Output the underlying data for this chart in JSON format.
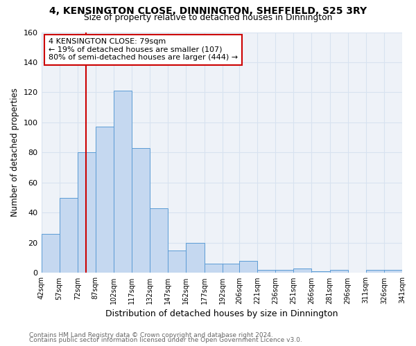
{
  "title": "4, KENSINGTON CLOSE, DINNINGTON, SHEFFIELD, S25 3RY",
  "subtitle": "Size of property relative to detached houses in Dinnington",
  "xlabel": "Distribution of detached houses by size in Dinnington",
  "ylabel": "Number of detached properties",
  "bin_edges": [
    42,
    57,
    72,
    87,
    102,
    117,
    132,
    147,
    162,
    177,
    192,
    206,
    221,
    236,
    251,
    266,
    281,
    296,
    311,
    326,
    341
  ],
  "bar_heights": [
    26,
    50,
    80,
    97,
    121,
    83,
    43,
    15,
    20,
    6,
    6,
    8,
    2,
    2,
    3,
    1,
    2,
    0,
    2,
    2
  ],
  "bar_color": "#c5d8f0",
  "bar_edge_color": "#5b9bd5",
  "vline_x": 79,
  "vline_color": "#cc0000",
  "ylim": [
    0,
    160
  ],
  "yticks": [
    0,
    20,
    40,
    60,
    80,
    100,
    120,
    140,
    160
  ],
  "annotation_title": "4 KENSINGTON CLOSE: 79sqm",
  "annotation_line1": "← 19% of detached houses are smaller (107)",
  "annotation_line2": "80% of semi-detached houses are larger (444) →",
  "annotation_box_color": "#cc0000",
  "footer_line1": "Contains HM Land Registry data © Crown copyright and database right 2024.",
  "footer_line2": "Contains public sector information licensed under the Open Government Licence v3.0.",
  "bg_color": "#eef2f8",
  "grid_color": "#d8e2f0",
  "tick_labels": [
    "42sqm",
    "57sqm",
    "72sqm",
    "87sqm",
    "102sqm",
    "117sqm",
    "132sqm",
    "147sqm",
    "162sqm",
    "177sqm",
    "192sqm",
    "206sqm",
    "221sqm",
    "236sqm",
    "251sqm",
    "266sqm",
    "281sqm",
    "296sqm",
    "311sqm",
    "326sqm",
    "341sqm"
  ]
}
